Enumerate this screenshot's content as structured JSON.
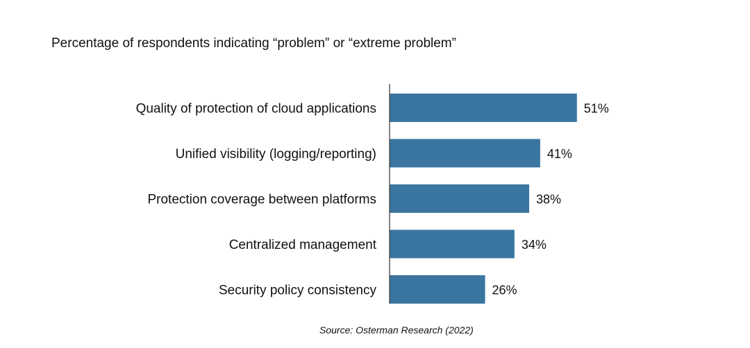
{
  "chart_data": {
    "type": "bar",
    "orientation": "horizontal",
    "title": "Percentage of respondents indicating “problem” or “extreme problem”",
    "categories": [
      "Quality of protection of cloud applications",
      "Unified visibility (logging/reporting)",
      "Protection coverage between platforms",
      "Centralized management",
      "Security policy consistency"
    ],
    "values": [
      51,
      41,
      38,
      34,
      26
    ],
    "value_labels": [
      "51%",
      "41%",
      "38%",
      "34%",
      "26%"
    ],
    "xlim": [
      0,
      100
    ],
    "grid": false,
    "bar_color": "#3a76a0",
    "source": "Source: Osterman Research (2022)"
  }
}
